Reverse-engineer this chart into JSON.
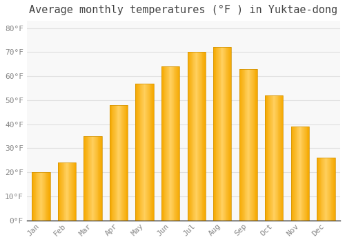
{
  "title": "Average monthly temperatures (°F ) in Yuktae-dong",
  "months": [
    "Jan",
    "Feb",
    "Mar",
    "Apr",
    "May",
    "Jun",
    "Jul",
    "Aug",
    "Sep",
    "Oct",
    "Nov",
    "Dec"
  ],
  "values": [
    20,
    24,
    35,
    48,
    57,
    64,
    70,
    72,
    63,
    52,
    39,
    26
  ],
  "bar_color_center": "#FFD060",
  "bar_color_edge": "#F5A800",
  "background_color": "#FFFFFF",
  "plot_bg_color": "#F8F8F8",
  "grid_color": "#E0E0E0",
  "ylim": [
    0,
    83
  ],
  "yticks": [
    0,
    10,
    20,
    30,
    40,
    50,
    60,
    70,
    80
  ],
  "ytick_labels": [
    "0°F",
    "10°F",
    "20°F",
    "30°F",
    "40°F",
    "50°F",
    "60°F",
    "70°F",
    "80°F"
  ],
  "title_fontsize": 11,
  "tick_fontsize": 8,
  "font_family": "monospace",
  "bar_width": 0.7
}
